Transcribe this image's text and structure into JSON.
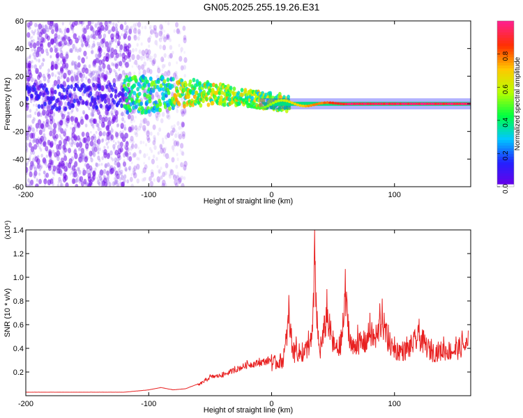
{
  "title": "GN05.2025.255.19.26.E31",
  "chart_data": [
    {
      "type": "heatmap",
      "xlabel": "Height of straight line (km)",
      "ylabel": "Frequency (Hz)",
      "xlim": [
        -200,
        162
      ],
      "ylim": [
        -60,
        60
      ],
      "xticks": [
        -200,
        -100,
        0,
        100
      ],
      "yticks": [
        -60,
        -40,
        -20,
        0,
        20,
        40,
        60
      ],
      "colorbar": {
        "label": "Normalized spectral amplitude",
        "range": [
          0,
          1
        ],
        "ticks": [
          "0.0",
          "0.2",
          "0.4",
          "0.6",
          "0.8"
        ],
        "stops": [
          "#6a00e8",
          "#2222ff",
          "#00c8ff",
          "#00ff40",
          "#b8ff00",
          "#ffc800",
          "#ff3000",
          "#ff2088"
        ]
      },
      "features": [
        {
          "name": "scattered noise",
          "x_range": [
            -200,
            -115
          ],
          "freq_range": [
            -60,
            60
          ],
          "amplitude": 0.05
        },
        {
          "name": "sparse noise",
          "x_range": [
            -115,
            -70
          ],
          "freq_range": [
            -60,
            60
          ],
          "amplitude": 0.03
        },
        {
          "name": "broadened line",
          "x_range": [
            -120,
            -25
          ],
          "center_freq": [
            5,
            8
          ],
          "spread": [
            15,
            6
          ],
          "amplitude": 0.35
        },
        {
          "name": "narrow line",
          "x_range": [
            0,
            162
          ],
          "center_freq": 0,
          "spread": 2,
          "amplitude": 1.0
        }
      ]
    },
    {
      "type": "line",
      "xlabel": "Height of straight line (km)",
      "ylabel": "SNR (10 * v/v)",
      "scale_label": "(x10⁴)",
      "xlim": [
        -200,
        162
      ],
      "ylim": [
        0,
        1.4
      ],
      "xticks": [
        -200,
        -100,
        0,
        100
      ],
      "yticks": [
        "0.2",
        "0.4",
        "0.6",
        "0.8",
        "1.0",
        "1.2",
        "1.4"
      ],
      "series": [
        {
          "color": "#e82020",
          "x": [
            -200,
            -190,
            -180,
            -170,
            -160,
            -150,
            -140,
            -130,
            -120,
            -110,
            -100,
            -90,
            -80,
            -70,
            -60,
            -50,
            -40,
            -30,
            -20,
            -10,
            0,
            10,
            14,
            18,
            20,
            25,
            30,
            33,
            35,
            38,
            40,
            45,
            50,
            55,
            58,
            60,
            65,
            70,
            75,
            80,
            85,
            88,
            90,
            95,
            100,
            110,
            120,
            130,
            140,
            150,
            155,
            160
          ],
          "y": [
            0.03,
            0.03,
            0.03,
            0.03,
            0.03,
            0.03,
            0.03,
            0.03,
            0.03,
            0.04,
            0.05,
            0.07,
            0.05,
            0.06,
            0.1,
            0.18,
            0.2,
            0.25,
            0.3,
            0.32,
            0.35,
            0.4,
            0.85,
            0.45,
            0.5,
            0.45,
            0.55,
            0.6,
            1.4,
            0.55,
            0.5,
            0.9,
            0.55,
            0.5,
            0.7,
            1.07,
            0.5,
            0.6,
            0.55,
            0.7,
            0.6,
            0.78,
            0.82,
            0.6,
            0.5,
            0.5,
            0.65,
            0.48,
            0.5,
            0.5,
            0.55,
            0.55
          ]
        }
      ]
    }
  ]
}
